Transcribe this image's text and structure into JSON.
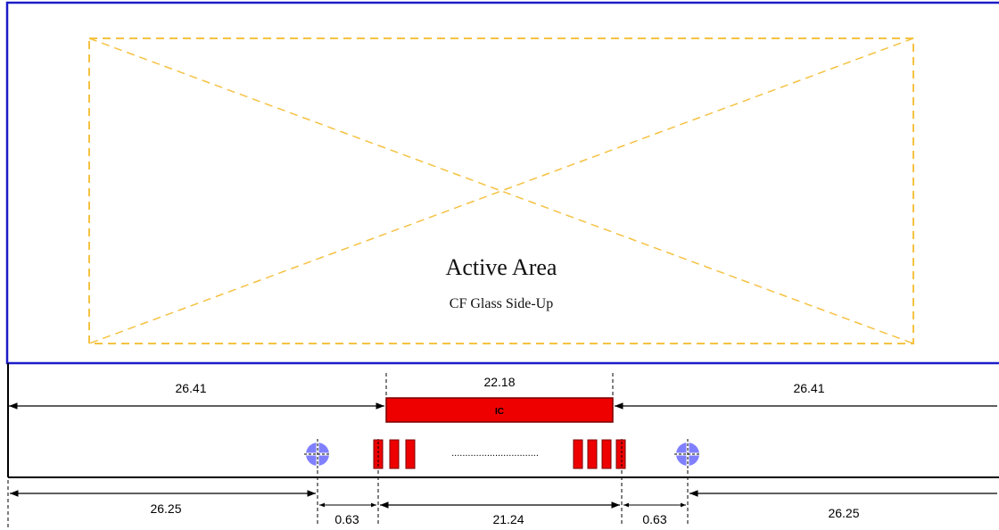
{
  "colors": {
    "panel_border": "#1c1cc8",
    "active_area_dash": "#f5c242",
    "ic_fill": "#ee0000",
    "ic_border": "#7a0000",
    "alignment_mark": "#8080ff",
    "dimension_line": "#000000"
  },
  "panel": {
    "active_area_title": "Active Area",
    "active_area_subtitle": "CF Glass Side-Up"
  },
  "ic": {
    "label": "IC"
  },
  "pads": {
    "left_count": 3,
    "right_count": 4,
    "ellipsis": "................................"
  },
  "dimensions": {
    "top_left": "26.41",
    "top_center": "22.18",
    "top_right": "26.41",
    "bottom_left": "26.25",
    "bottom_gap_left": "0.63",
    "bottom_center": "21.24",
    "bottom_gap_right": "0.63",
    "bottom_right": "26.25"
  }
}
